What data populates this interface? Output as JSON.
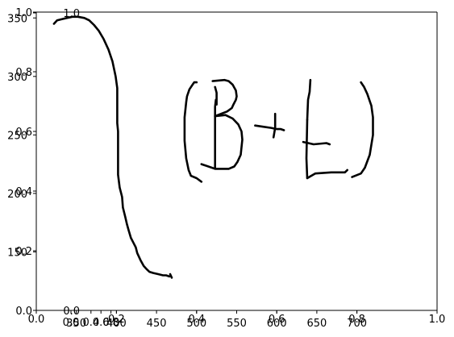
{
  "chart_data": {
    "type": "line",
    "title": "",
    "xlabel": "",
    "ylabel": "",
    "grid": false,
    "legend": "none",
    "ink_color": "#000000",
    "axes": [
      {
        "name": "front-axes",
        "xlim": [
          0.0,
          1.0
        ],
        "ylim": [
          0.0,
          1.0
        ],
        "xticks": [
          {
            "value": 0.0,
            "label": "0.0"
          },
          {
            "value": 0.2,
            "label": "0.2"
          },
          {
            "value": 0.4,
            "label": "0.4"
          },
          {
            "value": 0.6,
            "label": "0.6"
          },
          {
            "value": 0.8,
            "label": "0.8"
          },
          {
            "value": 1.0,
            "label": "1.0"
          }
        ],
        "yticks": [
          {
            "value": 0.0,
            "label": "0.0"
          },
          {
            "value": 0.2,
            "label": "0.2"
          },
          {
            "value": 0.4,
            "label": "0.4"
          },
          {
            "value": 0.6,
            "label": "0.6"
          },
          {
            "value": 0.8,
            "label": "0.8"
          },
          {
            "value": 1.0,
            "label": "1.0"
          }
        ]
      },
      {
        "name": "stroke-axes",
        "xlim": [
          300,
          800
        ],
        "ylim": [
          100,
          355
        ],
        "xticks": [
          {
            "value": 350,
            "label": "350"
          },
          {
            "value": 400,
            "label": "400"
          },
          {
            "value": 450,
            "label": "450"
          },
          {
            "value": 500,
            "label": "500"
          },
          {
            "value": 550,
            "label": "550"
          },
          {
            "value": 600,
            "label": "600"
          },
          {
            "value": 650,
            "label": "650"
          },
          {
            "value": 700,
            "label": "700"
          }
        ],
        "yticks": [
          {
            "value": 150,
            "label": "150"
          },
          {
            "value": 200,
            "label": "200"
          },
          {
            "value": 250,
            "label": "250"
          },
          {
            "value": 300,
            "label": "300"
          },
          {
            "value": 350,
            "label": "350"
          }
        ]
      },
      {
        "name": "inset-axes",
        "xlim": [
          0.0,
          1.0
        ],
        "ylim": [
          0.0,
          1.0
        ],
        "xticks": [
          {
            "value": 0.0,
            "label": "0.0"
          },
          {
            "value": 0.4,
            "label": "0.4"
          },
          {
            "value": 0.6,
            "label": "0.6"
          },
          {
            "value": 0.8,
            "label": "0.8"
          }
        ],
        "yticks": [
          {
            "value": 0.0,
            "label": "0.0"
          },
          {
            "value": 1.0,
            "label": "1.0"
          }
        ]
      }
    ],
    "series": [
      {
        "points": [
          [
            322,
            345
          ],
          [
            326,
            348
          ],
          [
            332,
            349
          ],
          [
            338,
            350
          ],
          [
            345,
            351
          ],
          [
            352,
            351
          ],
          [
            360,
            350
          ],
          [
            366,
            348
          ],
          [
            372,
            344
          ],
          [
            378,
            339
          ],
          [
            384,
            332
          ],
          [
            390,
            323
          ],
          [
            395,
            313
          ],
          [
            399,
            300
          ],
          [
            401,
            290
          ],
          [
            401,
            260
          ],
          [
            402,
            253
          ],
          [
            402,
            216
          ],
          [
            404,
            205
          ],
          [
            407,
            197
          ],
          [
            408,
            188
          ],
          [
            411,
            180
          ],
          [
            413,
            174
          ],
          [
            415,
            169
          ],
          [
            418,
            162
          ],
          [
            421,
            158
          ],
          [
            424,
            154
          ],
          [
            426,
            149
          ],
          [
            430,
            143
          ],
          [
            434,
            138
          ],
          [
            438,
            135
          ],
          [
            441,
            133
          ],
          [
            446,
            132
          ],
          [
            452,
            131
          ],
          [
            458,
            130
          ],
          [
            462,
            130
          ],
          [
            466,
            129
          ]
        ]
      },
      {
        "points": [
          [
            467,
            131
          ],
          [
            469,
            128
          ]
        ]
      },
      {
        "points": [
          [
            500,
            295
          ],
          [
            497,
            295
          ],
          [
            495,
            293
          ],
          [
            491,
            289
          ],
          [
            488,
            283
          ],
          [
            487,
            278
          ],
          [
            485,
            265
          ],
          [
            485,
            245
          ],
          [
            487,
            230
          ],
          [
            490,
            220
          ],
          [
            493,
            215
          ],
          [
            500,
            213
          ],
          [
            506,
            210
          ]
        ]
      },
      {
        "points": [
          [
            523,
            291
          ],
          [
            525,
            286
          ],
          [
            525,
            276
          ]
        ]
      },
      {
        "points": [
          [
            524,
            280
          ],
          [
            523,
            274
          ],
          [
            523,
            222
          ]
        ]
      },
      {
        "points": [
          [
            520,
            296
          ],
          [
            535,
            297
          ],
          [
            540,
            296
          ],
          [
            545,
            293
          ],
          [
            549,
            288
          ],
          [
            550,
            283
          ],
          [
            549,
            280
          ],
          [
            546,
            276
          ],
          [
            544,
            273
          ],
          [
            538,
            270
          ],
          [
            534,
            269
          ],
          [
            523,
            266
          ]
        ]
      },
      {
        "points": [
          [
            523,
            266
          ],
          [
            536,
            267
          ],
          [
            545,
            264
          ],
          [
            552,
            259
          ],
          [
            556,
            253
          ],
          [
            557,
            246
          ],
          [
            555,
            233
          ],
          [
            551,
            227
          ],
          [
            547,
            223
          ],
          [
            540,
            221
          ],
          [
            523,
            221
          ],
          [
            506,
            225
          ]
        ]
      },
      {
        "points": [
          [
            573,
            258
          ],
          [
            583,
            257
          ],
          [
            593,
            256
          ],
          [
            600,
            255
          ],
          [
            605,
            255
          ],
          [
            609,
            254
          ]
        ]
      },
      {
        "points": [
          [
            598,
            268
          ],
          [
            598,
            256
          ],
          [
            596,
            248
          ]
        ]
      },
      {
        "points": [
          [
            642,
            297
          ],
          [
            641,
            287
          ],
          [
            639,
            280
          ],
          [
            638,
            263
          ]
        ]
      },
      {
        "points": [
          [
            638,
            263
          ],
          [
            637,
            230
          ],
          [
            638,
            213
          ]
        ]
      },
      {
        "points": [
          [
            638,
            213
          ],
          [
            643,
            215
          ],
          [
            648,
            217
          ],
          [
            668,
            218
          ],
          [
            685,
            218
          ],
          [
            688,
            220
          ]
        ]
      },
      {
        "points": [
          [
            694,
            214
          ],
          [
            705,
            217
          ],
          [
            710,
            222
          ],
          [
            716,
            233
          ],
          [
            720,
            250
          ],
          [
            720,
            265
          ],
          [
            718,
            275
          ],
          [
            713,
            285
          ],
          [
            709,
            291
          ],
          [
            705,
            295
          ]
        ]
      },
      {
        "points": [
          [
            633,
            244
          ],
          [
            646,
            242
          ],
          [
            662,
            243
          ],
          [
            666,
            242
          ]
        ]
      }
    ]
  }
}
